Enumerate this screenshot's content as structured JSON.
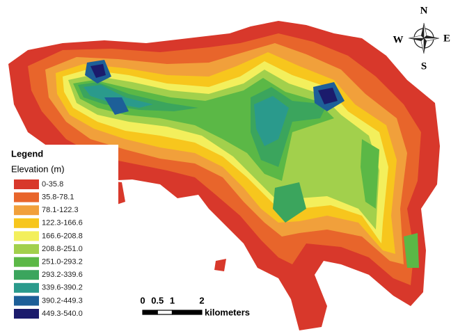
{
  "legend": {
    "title": "Legend",
    "subtitle": "Elevation (m)",
    "items": [
      {
        "label": "0-35.8",
        "color": "#d8382b"
      },
      {
        "label": "35.8-78.1",
        "color": "#e8652b"
      },
      {
        "label": "78.1-122.3",
        "color": "#f1a03b"
      },
      {
        "label": "122.3-166.6",
        "color": "#f7c61d"
      },
      {
        "label": "166.6-208.8",
        "color": "#f3ef5c"
      },
      {
        "label": "208.8-251.0",
        "color": "#a2d04c"
      },
      {
        "label": "251.0-293.2",
        "color": "#5bb846"
      },
      {
        "label": "293.2-339.6",
        "color": "#3ba55d"
      },
      {
        "label": "339.6-390.2",
        "color": "#2a9a8c"
      },
      {
        "label": "390.2-449.3",
        "color": "#1d5f98"
      },
      {
        "label": "449.3-540.0",
        "color": "#1b1b6c"
      }
    ]
  },
  "compass": {
    "north": "N",
    "east": "E",
    "south": "S",
    "west": "W"
  },
  "scale_bar": {
    "ticks": [
      0,
      0.5,
      1,
      2
    ],
    "unit": "kilometers"
  }
}
